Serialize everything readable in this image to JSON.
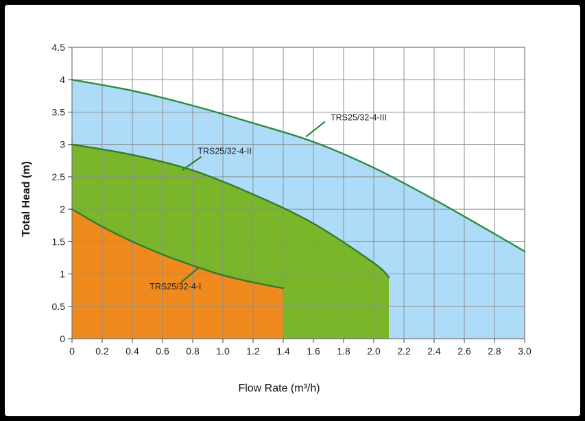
{
  "chart_data": {
    "type": "area",
    "title": "",
    "xlabel": "Flow Rate (m³/h)",
    "ylabel": "Total  Head (m)",
    "xlim": [
      0,
      3.0
    ],
    "ylim": [
      0,
      4.5
    ],
    "grid": true,
    "x_ticks": [
      "0",
      "0.2",
      "0.4",
      "0.6",
      "0.8",
      "1.0",
      "1.2",
      "1.4",
      "1.6",
      "1.8",
      "2.0",
      "2.2",
      "2.4",
      "2.6",
      "2.8",
      "3.0"
    ],
    "y_ticks": [
      "0",
      "0.5",
      "1",
      "1.5",
      "2",
      "2.5",
      "3",
      "3.5",
      "4",
      "4.5"
    ],
    "series": [
      {
        "name": "TRS25/32-4-III",
        "fill": "#aedcf8",
        "line": "#2e8b3c",
        "x": [
          0,
          0.4,
          0.8,
          1.2,
          1.6,
          2.0,
          2.4,
          2.8,
          3.0
        ],
        "y": [
          4.0,
          3.83,
          3.6,
          3.33,
          3.04,
          2.64,
          2.15,
          1.62,
          1.35
        ],
        "label_at": [
          1.55,
          3.12
        ]
      },
      {
        "name": "TRS25/32-4-II",
        "fill": "#7ab52a",
        "line": "#2e7d32",
        "x": [
          0,
          0.4,
          0.8,
          1.2,
          1.6,
          2.0,
          2.1
        ],
        "y": [
          3.0,
          2.84,
          2.6,
          2.23,
          1.78,
          1.17,
          0.95
        ],
        "label_at": [
          0.73,
          2.6
        ]
      },
      {
        "name": "TRS25/32-4-I",
        "fill": "#f08a1c",
        "line": "#2e7d32",
        "x": [
          0,
          0.2,
          0.4,
          0.6,
          0.8,
          1.0,
          1.2,
          1.4
        ],
        "y": [
          2.0,
          1.73,
          1.5,
          1.3,
          1.13,
          0.98,
          0.87,
          0.78
        ],
        "label_at": [
          0.84,
          1.1
        ]
      }
    ]
  }
}
